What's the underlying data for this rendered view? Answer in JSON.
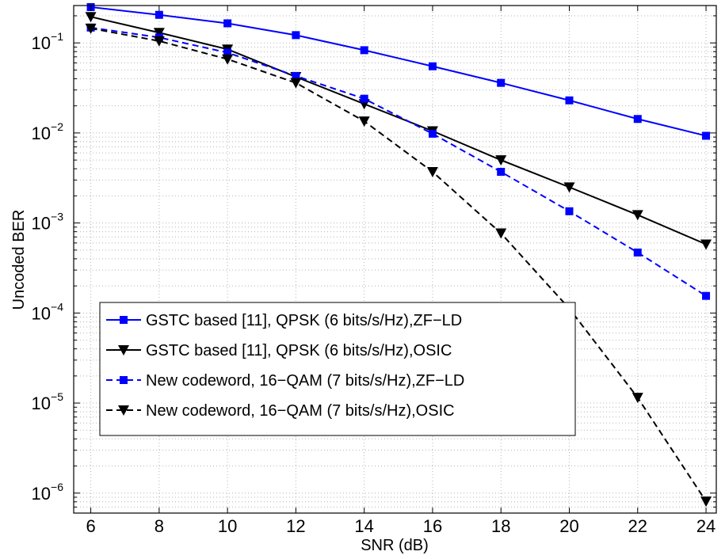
{
  "chart_data": {
    "type": "line",
    "title": "",
    "xlabel": "SNR (dB)",
    "ylabel": "Uncoded BER",
    "xlim": [
      5.5,
      24.3
    ],
    "ylim": [
      6e-07,
      0.26
    ],
    "yscale": "log",
    "grid": true,
    "legend_position": "bottom-left",
    "x": [
      6,
      8,
      10,
      12,
      14,
      16,
      18,
      20,
      22,
      24
    ],
    "xticks": [
      "6",
      "8",
      "10",
      "12",
      "14",
      "16",
      "18",
      "20",
      "22",
      "24"
    ],
    "yticks": [
      {
        "base": "10",
        "exp": "−1"
      },
      {
        "base": "10",
        "exp": "−2"
      },
      {
        "base": "10",
        "exp": "−3"
      },
      {
        "base": "10",
        "exp": "−4"
      },
      {
        "base": "10",
        "exp": "−5"
      },
      {
        "base": "10",
        "exp": "−6"
      }
    ],
    "series": [
      {
        "name": "GSTC based [11], QPSK (6 bits/s/Hz),ZF−LD",
        "color": "#0000ff",
        "line_style": "solid",
        "marker": "square",
        "values": [
          0.25,
          0.205,
          0.165,
          0.122,
          0.083,
          0.055,
          0.036,
          0.023,
          0.0143,
          0.0093
        ]
      },
      {
        "name": "GSTC based [11], QPSK (6 bits/s/Hz),OSIC",
        "color": "#000000",
        "line_style": "solid",
        "marker": "triangle-down",
        "values": [
          0.195,
          0.13,
          0.085,
          0.042,
          0.021,
          0.0105,
          0.005,
          0.0025,
          0.00123,
          0.00058
        ]
      },
      {
        "name": "New codeword,  16−QAM (7 bits/s/Hz),ZF−LD",
        "color": "#0000ff",
        "line_style": "dashed",
        "marker": "square",
        "values": [
          0.148,
          0.115,
          0.078,
          0.043,
          0.024,
          0.0098,
          0.0037,
          0.00135,
          0.00047,
          0.000155
        ]
      },
      {
        "name": "New codeword,  16−QAM (7 bits/s/Hz),OSIC",
        "color": "#000000",
        "line_style": "dashed",
        "marker": "triangle-down",
        "values": [
          0.145,
          0.105,
          0.066,
          0.036,
          0.0135,
          0.0037,
          0.00077,
          0.000112,
          1.15e-05,
          8.1e-07
        ]
      }
    ]
  }
}
